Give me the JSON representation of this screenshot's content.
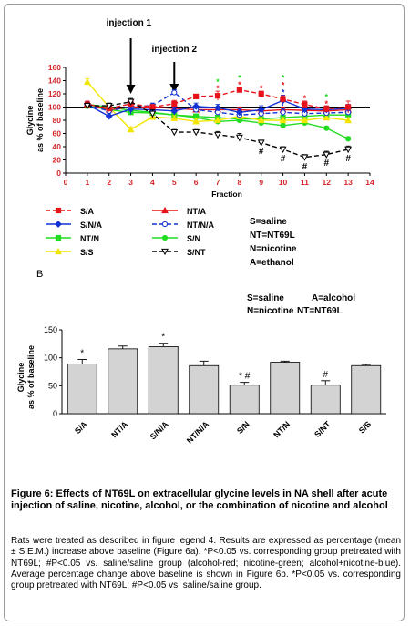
{
  "chart_data": [
    {
      "type": "line",
      "ylabel": [
        "Glycine",
        "as % of baseline"
      ],
      "xlabel": "Fraction",
      "xlim": [
        0,
        14
      ],
      "ylim": [
        0,
        160
      ],
      "xticks": [
        0,
        1,
        2,
        3,
        4,
        5,
        6,
        7,
        8,
        9,
        10,
        11,
        12,
        13,
        14
      ],
      "yticks": [
        0,
        20,
        40,
        60,
        80,
        100,
        120,
        140,
        160
      ],
      "baseline": 100,
      "annotations": [
        {
          "text": "injection 1",
          "x": 3
        },
        {
          "text": "injection 2",
          "x": 5
        }
      ],
      "x": [
        1,
        2,
        3,
        4,
        5,
        6,
        7,
        8,
        9,
        10,
        11,
        12,
        13
      ],
      "series": [
        {
          "name": "S/A",
          "color": "#e8141c",
          "marker": "square",
          "filled": true,
          "dashed": true,
          "values": [
            104,
            98,
            105,
            100,
            105,
            116,
            117,
            126,
            120,
            112,
            104,
            97,
            100
          ],
          "errors": [
            4,
            5,
            5,
            4,
            5,
            3,
            7,
            4,
            4,
            5,
            5,
            5,
            9
          ]
        },
        {
          "name": "NT/A",
          "color": "#e8141c",
          "marker": "triangle",
          "filled": true,
          "dashed": false,
          "values": [
            105,
            96,
            100,
            100,
            98,
            96,
            96,
            96,
            94,
            96,
            95,
            94,
            96
          ],
          "errors": [
            4,
            4,
            5,
            4,
            4,
            4,
            4,
            4,
            4,
            4,
            4,
            4,
            4
          ]
        },
        {
          "name": "S/N/A",
          "color": "#1232d6",
          "marker": "diamond",
          "filled": true,
          "dashed": false,
          "values": [
            104,
            86,
            97,
            96,
            94,
            101,
            99,
            92,
            96,
            110,
            97,
            96,
            98
          ],
          "errors": [
            4,
            4,
            8,
            5,
            6,
            5,
            5,
            5,
            6,
            8,
            6,
            5,
            6
          ]
        },
        {
          "name": "NT/N/A",
          "color": "#1232d6",
          "marker": "circle",
          "filled": false,
          "dashed": true,
          "values": [
            103,
            94,
            101,
            102,
            122,
            96,
            92,
            88,
            90,
            92,
            90,
            91,
            92
          ],
          "errors": [
            4,
            5,
            6,
            4,
            4,
            4,
            4,
            4,
            4,
            5,
            4,
            4,
            4
          ]
        },
        {
          "name": "NT/N",
          "color": "#22dd22",
          "marker": "square",
          "filled": true,
          "dashed": false,
          "values": [
            102,
            96,
            92,
            91,
            88,
            86,
            84,
            82,
            82,
            84,
            86,
            88,
            88
          ],
          "errors": [
            3,
            3,
            3,
            3,
            3,
            3,
            3,
            3,
            3,
            3,
            3,
            3,
            3
          ]
        },
        {
          "name": "S/N",
          "color": "#22dd22",
          "marker": "circle",
          "filled": true,
          "dashed": false,
          "values": [
            104,
            100,
            95,
            92,
            88,
            84,
            78,
            80,
            76,
            72,
            76,
            68,
            52
          ],
          "errors": [
            3,
            3,
            3,
            3,
            3,
            3,
            3,
            3,
            3,
            3,
            3,
            3,
            3
          ]
        },
        {
          "name": "S/S",
          "color": "#f2e600",
          "marker": "triangle",
          "filled": true,
          "dashed": false,
          "values": [
            138,
            100,
            66,
            85,
            83,
            78,
            80,
            86,
            80,
            80,
            80,
            84,
            80
          ],
          "errors": [
            5,
            4,
            4,
            4,
            4,
            4,
            4,
            4,
            4,
            4,
            4,
            4,
            4
          ]
        },
        {
          "name": "S/NT",
          "color": "#000000",
          "marker": "triangle-down",
          "filled": false,
          "dashed": true,
          "values": [
            102,
            102,
            108,
            90,
            62,
            62,
            58,
            54,
            46,
            36,
            24,
            28,
            36
          ],
          "errors": [
            4,
            4,
            5,
            6,
            4,
            4,
            5,
            6,
            4,
            4,
            4,
            5,
            5
          ]
        }
      ],
      "sig_marks": [
        {
          "x": 7,
          "y_value": 128,
          "text": "*",
          "color": "#e8141c"
        },
        {
          "x": 7,
          "y_value": 138,
          "text": "*",
          "color": "#22dd22"
        },
        {
          "x": 8,
          "y_value": 134,
          "text": "*",
          "color": "#e8141c"
        },
        {
          "x": 8,
          "y_value": 144,
          "text": "*",
          "color": "#22dd22"
        },
        {
          "x": 9,
          "y_value": 128,
          "text": "*",
          "color": "#e8141c"
        },
        {
          "x": 10,
          "y_value": 122,
          "text": "*",
          "color": "#1232d6"
        },
        {
          "x": 10,
          "y_value": 133,
          "text": "*",
          "color": "#e8141c"
        },
        {
          "x": 10,
          "y_value": 144,
          "text": "*",
          "color": "#22dd22"
        },
        {
          "x": 11,
          "y_value": 113,
          "text": "*",
          "color": "#e8141c"
        },
        {
          "x": 12,
          "y_value": 105,
          "text": "*",
          "color": "#e8141c"
        },
        {
          "x": 12,
          "y_value": 115,
          "text": "*",
          "color": "#22dd22"
        },
        {
          "x": 9,
          "y_value": 33,
          "text": "#",
          "color": "#000000"
        },
        {
          "x": 10,
          "y_value": 22,
          "text": "#",
          "color": "#000000"
        },
        {
          "x": 11,
          "y_value": 10,
          "text": "#",
          "color": "#000000"
        },
        {
          "x": 12,
          "y_value": 15,
          "text": "#",
          "color": "#000000"
        },
        {
          "x": 13,
          "y_value": 22,
          "text": "#",
          "color": "#000000"
        }
      ],
      "legend_abbrev": [
        "S=saline",
        "NT=NT69L",
        "N=nicotine",
        "A=ethanol"
      ]
    },
    {
      "type": "bar",
      "panel_label": "B",
      "ylabel": [
        "Glycine",
        "as % of baseline"
      ],
      "ylim": [
        0,
        150
      ],
      "yticks": [
        0,
        50,
        100,
        150
      ],
      "categories": [
        "S/A",
        "NT/A",
        "S/N/A",
        "NT/N/A",
        "S/N",
        "NT/N",
        "S/NT",
        "S/S"
      ],
      "values": [
        89,
        116,
        120,
        86,
        51,
        92,
        51,
        86
      ],
      "errors": [
        8,
        5,
        6,
        8,
        5,
        2,
        8,
        2
      ],
      "marks": [
        "*",
        "",
        "*",
        "",
        "* #",
        "",
        "#",
        ""
      ],
      "legend_abbrev": [
        "S=saline",
        "A=alcohol",
        "N=nicotine",
        "NT=NT69L"
      ]
    }
  ],
  "caption": "Figure 6: Effects of NT69L on extracellular glycine levels in NA shell after acute injection of saline, nicotine, alcohol, or the combination of nicotine and alcohol",
  "description": "Rats were treated as described in figure legend 4. Results are expressed as percentage (mean ± S.E.M.) increase above baseline (Figure 6a). *P<0.05 vs. corresponding group pretreated with NT69L; #P<0.05 vs. saline/saline group (alcohol-red; nicotine-green; alcohol+nicotine-blue). Average percentage change above baseline is shown in Figure 6b. *P<0.05 vs. corresponding group pretreated with NT69L; #P<0.05 vs. saline/saline group."
}
